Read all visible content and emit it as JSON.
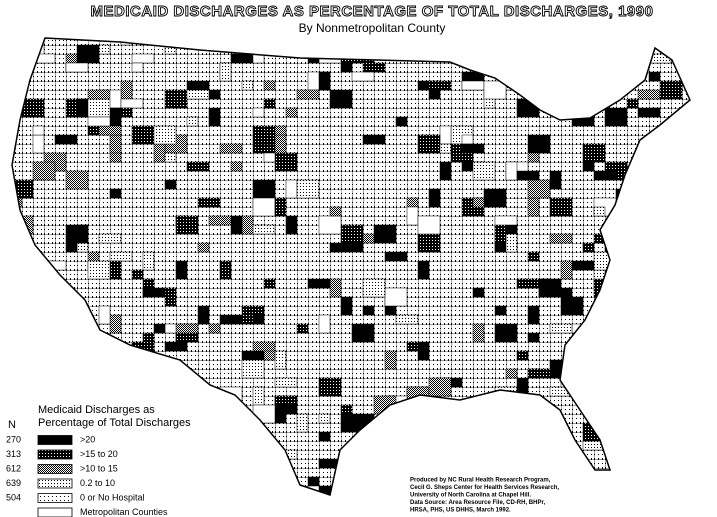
{
  "header": {
    "title": "MEDICAID DISCHARGES AS PERCENTAGE OF TOTAL DISCHARGES, 1990",
    "subtitle": "By Nonmetropolitan County"
  },
  "legend": {
    "title_lines": [
      "Medicaid Discharges as",
      "Percentage of Total Discharges"
    ],
    "count_header": "N",
    "items": [
      {
        "count": 270,
        "label": ">20"
      },
      {
        "count": 313,
        "label": ">15 to 20"
      },
      {
        "count": 612,
        "label": ">10 to 15"
      },
      {
        "count": 639,
        "label": "0.2 to 10"
      },
      {
        "count": 504,
        "label": "0 or No Hospital"
      },
      {
        "label": "Metropolitan Counties"
      }
    ]
  },
  "credits": [
    "Produced by NC Rural Health Research Program,",
    "Cecil G. Sheps Center for Health Services Research,",
    "University of North Carolina at Chapel Hill.",
    "Data Source: Area Resource File, CD-RH, BHPr,",
    "HRSA, PHS, US DHHS, March 1992."
  ]
}
